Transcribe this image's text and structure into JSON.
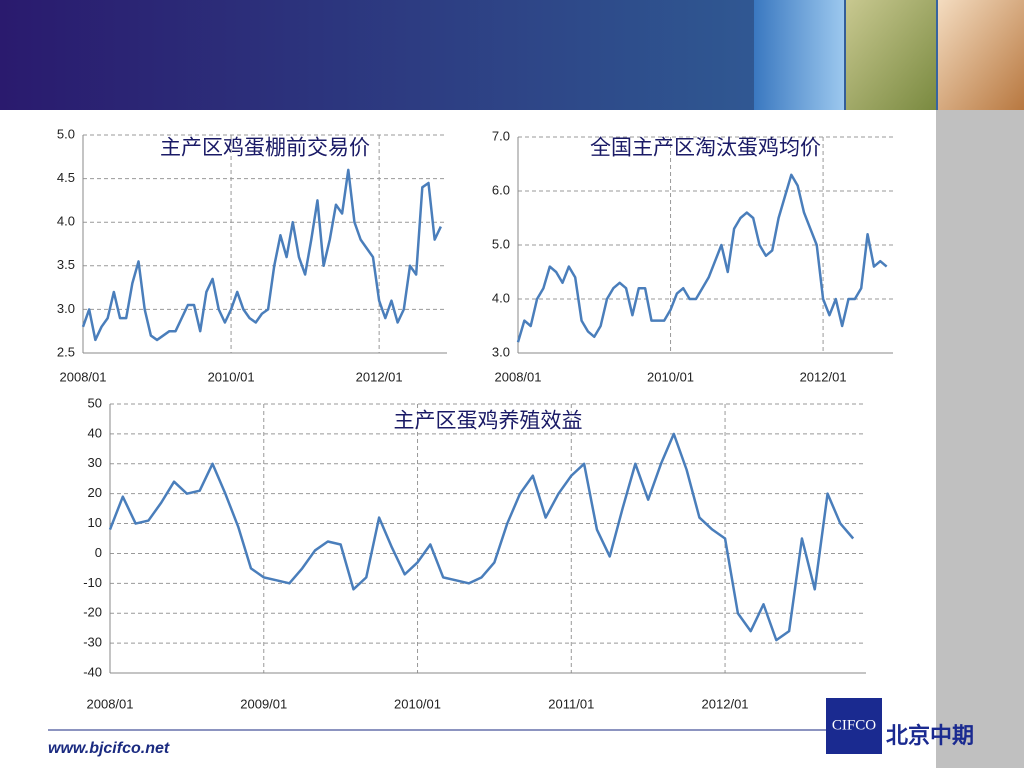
{
  "charts": [
    {
      "type": "line",
      "title": "主产区鸡蛋棚前交易价",
      "x": [
        "2008/01",
        "2008/02",
        "2008/03",
        "2008/04",
        "2008/05",
        "2008/06",
        "2008/07",
        "2008/08",
        "2008/09",
        "2008/10",
        "2008/11",
        "2008/12",
        "2009/01",
        "2009/02",
        "2009/03",
        "2009/04",
        "2009/05",
        "2009/06",
        "2009/07",
        "2009/08",
        "2009/09",
        "2009/10",
        "2009/11",
        "2009/12",
        "2010/01",
        "2010/02",
        "2010/03",
        "2010/04",
        "2010/05",
        "2010/06",
        "2010/07",
        "2010/08",
        "2010/09",
        "2010/10",
        "2010/11",
        "2010/12",
        "2011/01",
        "2011/02",
        "2011/03",
        "2011/04",
        "2011/05",
        "2011/06",
        "2011/07",
        "2011/08",
        "2011/09",
        "2011/10",
        "2011/11",
        "2011/12",
        "2012/01",
        "2012/02",
        "2012/03",
        "2012/04",
        "2012/05",
        "2012/06",
        "2012/07",
        "2012/08",
        "2012/09",
        "2012/10",
        "2012/11"
      ],
      "series": [
        {
          "color": "#4a7ebb",
          "values": [
            2.8,
            3.0,
            2.65,
            2.8,
            2.9,
            3.2,
            2.9,
            2.9,
            3.3,
            3.55,
            3.0,
            2.7,
            2.65,
            2.7,
            2.75,
            2.75,
            2.9,
            3.05,
            3.05,
            2.75,
            3.2,
            3.35,
            3.0,
            2.85,
            3.0,
            3.2,
            3.0,
            2.9,
            2.85,
            2.95,
            3.0,
            3.5,
            3.85,
            3.6,
            4.0,
            3.6,
            3.4,
            3.8,
            4.25,
            3.5,
            3.8,
            4.2,
            4.1,
            4.6,
            4.0,
            3.8,
            3.7,
            3.6,
            3.1,
            2.9,
            3.1,
            2.85,
            3.0,
            3.5,
            3.4,
            4.4,
            4.45,
            3.8,
            3.95
          ]
        }
      ],
      "ylim": [
        2.5,
        5.0
      ],
      "yticks": [
        2.5,
        {
          "value": 3,
          "label": "3.0"
        },
        3.5,
        {
          "value": 4,
          "label": "4.0"
        },
        4.5,
        {
          "value": 5,
          "label": "5.0"
        }
      ],
      "xticks": [
        "2008/01",
        "2010/01",
        "2012/01"
      ],
      "grid": true
    },
    {
      "type": "line",
      "title": "全国主产区淘汰蛋鸡均价",
      "x": [
        "2008/01",
        "2008/02",
        "2008/03",
        "2008/04",
        "2008/05",
        "2008/06",
        "2008/07",
        "2008/08",
        "2008/09",
        "2008/10",
        "2008/11",
        "2008/12",
        "2009/01",
        "2009/02",
        "2009/03",
        "2009/04",
        "2009/05",
        "2009/06",
        "2009/07",
        "2009/08",
        "2009/09",
        "2009/10",
        "2009/11",
        "2009/12",
        "2010/01",
        "2010/02",
        "2010/03",
        "2010/04",
        "2010/05",
        "2010/06",
        "2010/07",
        "2010/08",
        "2010/09",
        "2010/10",
        "2010/11",
        "2010/12",
        "2011/01",
        "2011/02",
        "2011/03",
        "2011/04",
        "2011/05",
        "2011/06",
        "2011/07",
        "2011/08",
        "2011/09",
        "2011/10",
        "2011/11",
        "2011/12",
        "2012/01",
        "2012/02",
        "2012/03",
        "2012/04",
        "2012/05",
        "2012/06",
        "2012/07",
        "2012/08",
        "2012/09",
        "2012/10",
        "2012/11"
      ],
      "series": [
        {
          "color": "#4a7ebb",
          "values": [
            3.2,
            3.6,
            3.5,
            4.0,
            4.2,
            4.6,
            4.5,
            4.3,
            4.6,
            4.4,
            3.6,
            3.4,
            3.3,
            3.5,
            4.0,
            4.2,
            4.3,
            4.2,
            3.7,
            4.2,
            4.2,
            3.6,
            3.6,
            3.6,
            3.8,
            4.1,
            4.2,
            4.0,
            4.0,
            4.2,
            4.4,
            4.7,
            5.0,
            4.5,
            5.3,
            5.5,
            5.6,
            5.5,
            5.0,
            4.8,
            4.9,
            5.5,
            5.9,
            6.3,
            6.1,
            5.6,
            5.3,
            5.0,
            4.0,
            3.7,
            4.0,
            3.5,
            4.0,
            4.0,
            4.2,
            5.2,
            4.6,
            4.7,
            4.6
          ]
        }
      ],
      "ylim": [
        3,
        7
      ],
      "yticks": [
        {
          "value": 3,
          "label": "3.0"
        },
        {
          "value": 4,
          "label": "4.0"
        },
        {
          "value": 5,
          "label": "5.0"
        },
        {
          "value": 6,
          "label": "6.0"
        },
        {
          "value": 7,
          "label": "7.0"
        }
      ],
      "xticks": [
        "2008/01",
        "2010/01",
        "2012/01"
      ],
      "grid": true
    },
    {
      "type": "line",
      "title": "主产区蛋鸡养殖效益",
      "x": [
        "2008/01",
        "2008/02",
        "2008/03",
        "2008/04",
        "2008/05",
        "2008/06",
        "2008/07",
        "2008/08",
        "2008/09",
        "2008/10",
        "2008/11",
        "2008/12",
        "2009/01",
        "2009/02",
        "2009/03",
        "2009/04",
        "2009/05",
        "2009/06",
        "2009/07",
        "2009/08",
        "2009/09",
        "2009/10",
        "2009/11",
        "2009/12",
        "2010/01",
        "2010/02",
        "2010/03",
        "2010/04",
        "2010/05",
        "2010/06",
        "2010/07",
        "2010/08",
        "2010/09",
        "2010/10",
        "2010/11",
        "2010/12",
        "2011/01",
        "2011/02",
        "2011/03",
        "2011/04",
        "2011/05",
        "2011/06",
        "2011/07",
        "2011/08",
        "2011/09",
        "2011/10",
        "2011/11",
        "2011/12",
        "2012/01",
        "2012/02",
        "2012/03",
        "2012/04",
        "2012/05",
        "2012/06",
        "2012/07",
        "2012/08",
        "2012/09",
        "2012/10",
        "2012/11"
      ],
      "series": [
        {
          "color": "#4a7ebb",
          "values": [
            8,
            19,
            10,
            11,
            17,
            24,
            20,
            21,
            30,
            20,
            9,
            -5,
            -8,
            -9,
            -10,
            -5,
            1,
            4,
            3,
            -12,
            -8,
            12,
            2,
            -7,
            -3,
            3,
            -8,
            -9,
            -10,
            -8,
            -3,
            10,
            20,
            26,
            12,
            20,
            26,
            30,
            8,
            -1,
            15,
            30,
            18,
            30,
            40,
            28,
            12,
            8,
            5,
            -20,
            -26,
            -17,
            -29,
            -26,
            5,
            -12,
            20,
            10,
            5
          ]
        }
      ],
      "ylim": [
        -40,
        50
      ],
      "yticks": [
        -40,
        -30,
        -20,
        -10,
        0,
        10,
        20,
        30,
        40,
        50
      ],
      "negative_tick_color": "#e00000",
      "xticks": [
        "2008/01",
        "2009/01",
        "2010/01",
        "2011/01",
        "2012/01"
      ],
      "grid": true
    }
  ],
  "footer": {
    "url": "www.bjcifco.net"
  },
  "logo": {
    "mark": "CIFCO",
    "text": "北京中期"
  }
}
